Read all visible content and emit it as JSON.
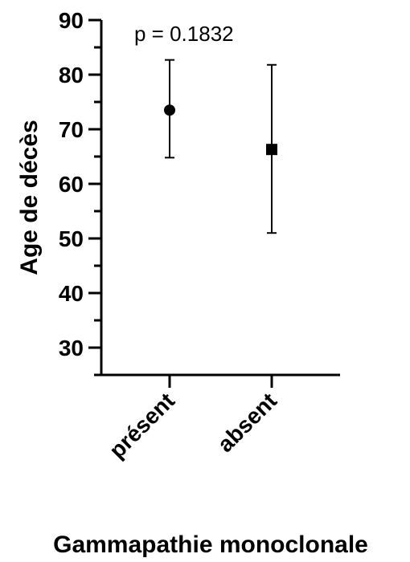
{
  "chart_data": {
    "type": "scatter",
    "title": "",
    "xlabel": "Gammapathie monoclonale",
    "ylabel": "Age de décès",
    "ylim": [
      25,
      90
    ],
    "yticks": [
      30,
      40,
      50,
      60,
      70,
      80,
      90
    ],
    "categories": [
      "présent",
      "absent"
    ],
    "series": [
      {
        "marker": "circle",
        "category": "présent",
        "mean": 73.5,
        "upper": 82.7,
        "lower": 64.8
      },
      {
        "marker": "square",
        "category": "absent",
        "mean": 66.3,
        "upper": 81.8,
        "lower": 51.0
      }
    ],
    "annotation": "p = 0.1832",
    "grid": false,
    "colors": {
      "marker": "#000000",
      "axis": "#000000"
    }
  }
}
